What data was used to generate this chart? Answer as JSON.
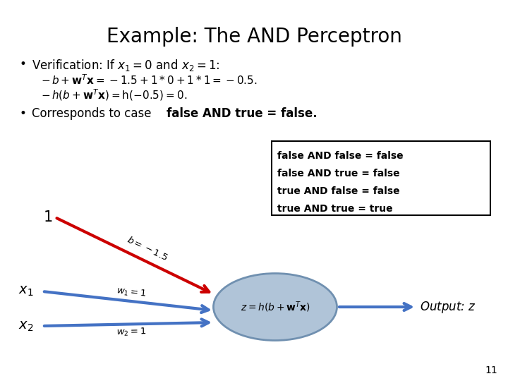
{
  "title": "Example: The AND Perceptron",
  "background_color": "#ffffff",
  "box_lines": [
    "false AND false = false",
    "false AND true = false",
    "true AND false = false",
    "true AND true = true"
  ],
  "node_ellipse_color": "#b0c4d8",
  "node_edge_color": "#7090b0",
  "node_text": "$z = h(b + \\mathbf{w}^T\\mathbf{x})$",
  "output_label": "Output: $z$",
  "bias_label": "$b = -1.5$",
  "w1_label": "$w_1 = 1$",
  "w2_label": "$w_2 = 1$",
  "x1_label": "$x_1$",
  "x2_label": "$x_2$",
  "bias_node_label": "1",
  "arrow_blue": "#4472c4",
  "arrow_red": "#cc0000",
  "page_number": "11",
  "title_fontsize": 20,
  "body_fontsize": 12,
  "sub_fontsize": 11
}
